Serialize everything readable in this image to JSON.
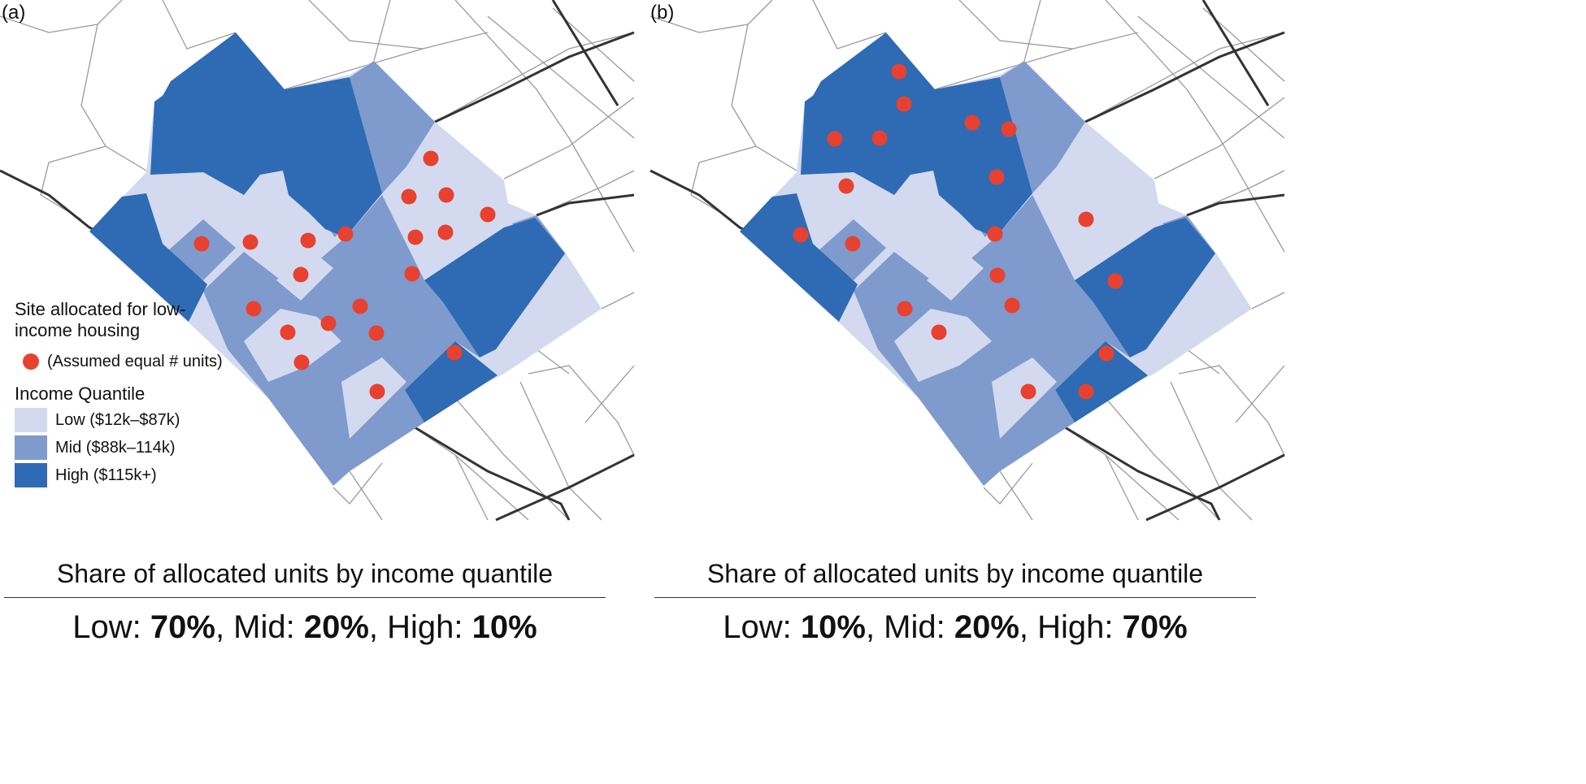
{
  "colors": {
    "low": "#d3daef",
    "mid": "#7f9acd",
    "high": "#2e6bb4",
    "site": "#e8412f",
    "road_minor": "#9a9a9a",
    "road_major": "#333333"
  },
  "legend": {
    "site_title": "Site allocated for low-income housing",
    "site_note": "(Assumed equal # units)",
    "quantile_title": "Income Quantile",
    "items": [
      {
        "label": "Low ($12k–$87k)",
        "level": "low"
      },
      {
        "label": "Mid ($88k–114k)",
        "level": "mid"
      },
      {
        "label": "High ($115k+)",
        "level": "high"
      }
    ]
  },
  "panels": [
    {
      "label": "(a)",
      "summary_title": "Share of allocated units by income quantile",
      "low_label": "Low: ",
      "low": "70%",
      "mid_label": ", Mid: ",
      "mid": "20%",
      "high_label": ", High: ",
      "high": "10%"
    },
    {
      "label": "(b)",
      "summary_title": "Share of allocated units by income quantile",
      "low_label": "Low: ",
      "low": "10%",
      "mid_label": ", Mid: ",
      "mid": "20%",
      "high_label": ", High: ",
      "high": "70%"
    }
  ]
}
